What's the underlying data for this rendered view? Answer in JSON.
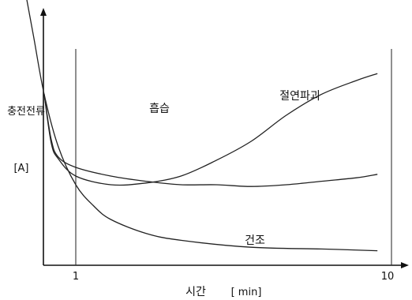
{
  "chart_data": {
    "type": "line",
    "xlabel": "시간",
    "xlabel_unit": "[ min]",
    "ylabel": "충전전류",
    "ylabel_unit": "[A]",
    "x_ticks": [
      "1",
      "10"
    ],
    "y_ticks": [],
    "grid": false,
    "series": [
      {
        "name": "흡습",
        "points": [
          [
            0.1,
            92
          ],
          [
            0.3,
            66
          ],
          [
            0.5,
            56
          ],
          [
            1,
            50
          ],
          [
            2,
            45
          ],
          [
            3,
            42
          ],
          [
            4,
            40
          ],
          [
            5,
            40
          ],
          [
            6,
            39
          ],
          [
            7,
            40
          ],
          [
            8,
            42
          ],
          [
            9,
            44
          ],
          [
            9.6,
            46
          ]
        ]
      },
      {
        "name": "절연파괴",
        "points": [
          [
            0.1,
            92
          ],
          [
            0.3,
            64
          ],
          [
            0.5,
            55
          ],
          [
            1,
            45
          ],
          [
            2,
            40
          ],
          [
            3,
            41
          ],
          [
            4,
            45
          ],
          [
            5,
            54
          ],
          [
            6,
            65
          ],
          [
            7,
            80
          ],
          [
            8,
            92
          ],
          [
            9,
            100
          ],
          [
            9.6,
            104
          ]
        ]
      },
      {
        "name": "건조",
        "points": [
          [
            -0.5,
            158
          ],
          [
            -0.2,
            125
          ],
          [
            0.1,
            92
          ],
          [
            0.5,
            62
          ],
          [
            1,
            40
          ],
          [
            1.5,
            28
          ],
          [
            2,
            20
          ],
          [
            3,
            12
          ],
          [
            4,
            8
          ],
          [
            6,
            4
          ],
          [
            8,
            3
          ],
          [
            9.6,
            2
          ]
        ]
      }
    ],
    "annotations": [
      "흡습",
      "절연파괴",
      "건조"
    ]
  }
}
